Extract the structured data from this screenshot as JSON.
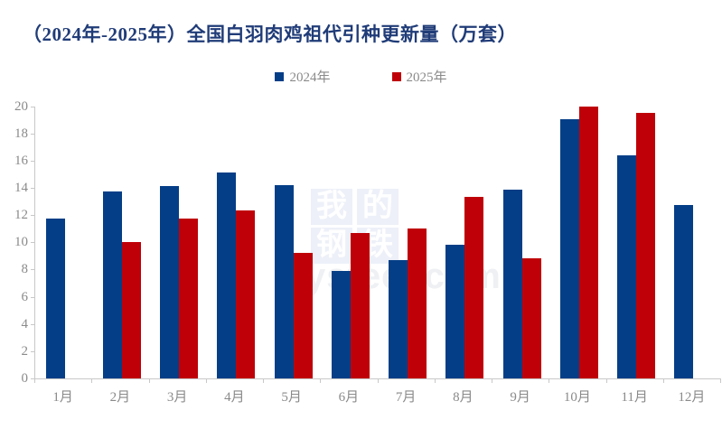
{
  "title": "（2024年-2025年）全国白羽肉鸡祖代引种更新量（万套）",
  "legend": {
    "items": [
      {
        "label": "2024年",
        "color": "#043e87"
      },
      {
        "label": "2025年",
        "color": "#bf0008"
      }
    ]
  },
  "watermark": {
    "grid_chars": [
      "我",
      "的",
      "钢",
      "铁"
    ],
    "latin": "ysteel.com"
  },
  "chart_data": {
    "type": "bar",
    "title": "（2024年-2025年）全国白羽肉鸡祖代引种更新量（万套）",
    "categories": [
      "1月",
      "2月",
      "3月",
      "4月",
      "5月",
      "6月",
      "7月",
      "8月",
      "9月",
      "10月",
      "11月",
      "12月"
    ],
    "series": [
      {
        "name": "2024年",
        "color": "#043e87",
        "values": [
          11.75,
          13.7,
          14.15,
          15.1,
          14.2,
          7.9,
          8.7,
          9.8,
          13.85,
          19.05,
          16.4,
          12.75
        ]
      },
      {
        "name": "2025年",
        "color": "#bf0008",
        "values": [
          null,
          10.0,
          11.75,
          12.35,
          9.2,
          10.7,
          11.0,
          13.35,
          8.8,
          20.0,
          19.5,
          null
        ]
      }
    ],
    "xlabel": "",
    "ylabel": "",
    "ylim": [
      0,
      20
    ],
    "ytick_step": 2,
    "grid": false,
    "legend_position": "top-center"
  }
}
